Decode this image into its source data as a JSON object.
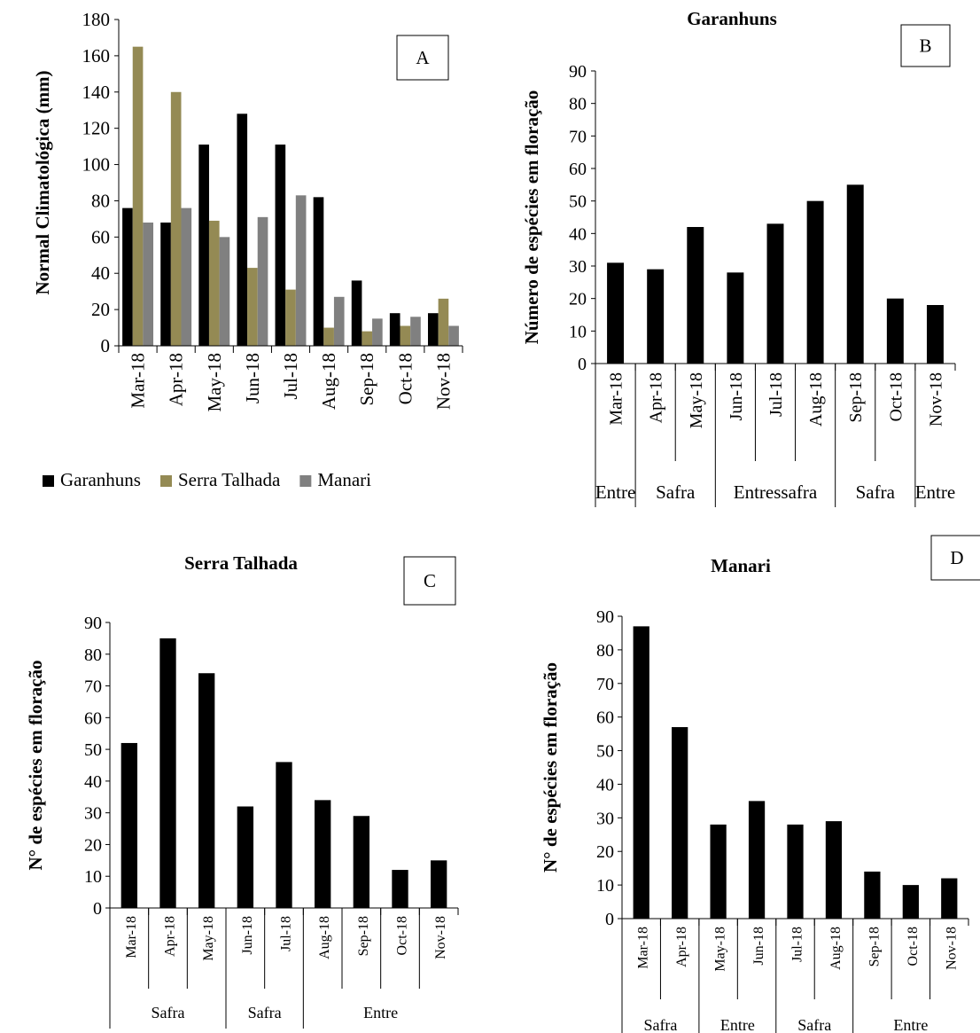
{
  "chart_data": [
    {
      "id": "A",
      "type": "bar",
      "panel_label": "A",
      "title": "",
      "ylabel": "Normal Climatológica (mm)",
      "ylim": [
        0,
        180
      ],
      "yticks": [
        0,
        20,
        40,
        60,
        80,
        100,
        120,
        140,
        160,
        180
      ],
      "categories": [
        "Mar-18",
        "Apr-18",
        "May-18",
        "Jun-18",
        "Jul-18",
        "Aug-18",
        "Sep-18",
        "Oct-18",
        "Nov-18"
      ],
      "series": [
        {
          "name": "Garanhuns",
          "color": "#000000",
          "values": [
            76,
            68,
            111,
            128,
            111,
            82,
            36,
            18,
            18
          ]
        },
        {
          "name": "Serra Talhada",
          "color": "#948a54",
          "values": [
            165,
            140,
            69,
            43,
            31,
            10,
            8,
            11,
            26
          ]
        },
        {
          "name": "Manari",
          "color": "#808080",
          "values": [
            68,
            76,
            60,
            71,
            83,
            27,
            15,
            16,
            11
          ]
        }
      ],
      "legend": "bottom",
      "grid": false
    },
    {
      "id": "B",
      "type": "bar",
      "panel_label": "B",
      "title": "Garanhuns",
      "ylabel": "Número de espécies em floração",
      "ylim": [
        0,
        90
      ],
      "yticks": [
        0,
        10,
        20,
        30,
        40,
        50,
        60,
        70,
        80,
        90
      ],
      "categories": [
        "Mar-18",
        "Apr-18",
        "May-18",
        "Jun-18",
        "Jul-18",
        "Aug-18",
        "Sep-18",
        "Oct-18",
        "Nov-18"
      ],
      "values": [
        31,
        29,
        42,
        28,
        43,
        50,
        55,
        20,
        18
      ],
      "color": "#000000",
      "groups": [
        {
          "label": "Entre",
          "span": 1
        },
        {
          "label": "Safra",
          "span": 2
        },
        {
          "label": "Entressafra",
          "span": 3
        },
        {
          "label": "Safra",
          "span": 2
        },
        {
          "label": "Entre",
          "span": 1
        }
      ],
      "grid": false
    },
    {
      "id": "C",
      "type": "bar",
      "panel_label": "C",
      "title": "Serra Talhada",
      "ylabel": "N° de espécies em floração",
      "ylim": [
        0,
        90
      ],
      "yticks": [
        0,
        10,
        20,
        30,
        40,
        50,
        60,
        70,
        80,
        90
      ],
      "categories": [
        "Mar-18",
        "Apr-18",
        "May-18",
        "Jun-18",
        "Jul-18",
        "Aug-18",
        "Sep-18",
        "Oct-18",
        "Nov-18"
      ],
      "values": [
        52,
        85,
        74,
        32,
        46,
        34,
        29,
        12,
        15
      ],
      "color": "#000000",
      "groups": [
        {
          "label": "Safra",
          "span": 3
        },
        {
          "label": "Safra",
          "span": 2
        },
        {
          "label": "Entre",
          "span": 4
        }
      ],
      "grid": false
    },
    {
      "id": "D",
      "type": "bar",
      "panel_label": "D",
      "title": "Manari",
      "ylabel": "N° de espécies em floração",
      "ylim": [
        0,
        90
      ],
      "yticks": [
        0,
        10,
        20,
        30,
        40,
        50,
        60,
        70,
        80,
        90
      ],
      "categories": [
        "Mar-18",
        "Apr-18",
        "May-18",
        "Jun-18",
        "Jul-18",
        "Aug-18",
        "Sep-18",
        "Oct-18",
        "Nov-18"
      ],
      "values": [
        87,
        57,
        28,
        35,
        28,
        29,
        14,
        10,
        12
      ],
      "color": "#000000",
      "groups": [
        {
          "label": "Safra",
          "span": 2
        },
        {
          "label": "Entre",
          "span": 2
        },
        {
          "label": "Safra",
          "span": 2
        },
        {
          "label": "Entre",
          "span": 3
        }
      ],
      "grid": false
    }
  ]
}
